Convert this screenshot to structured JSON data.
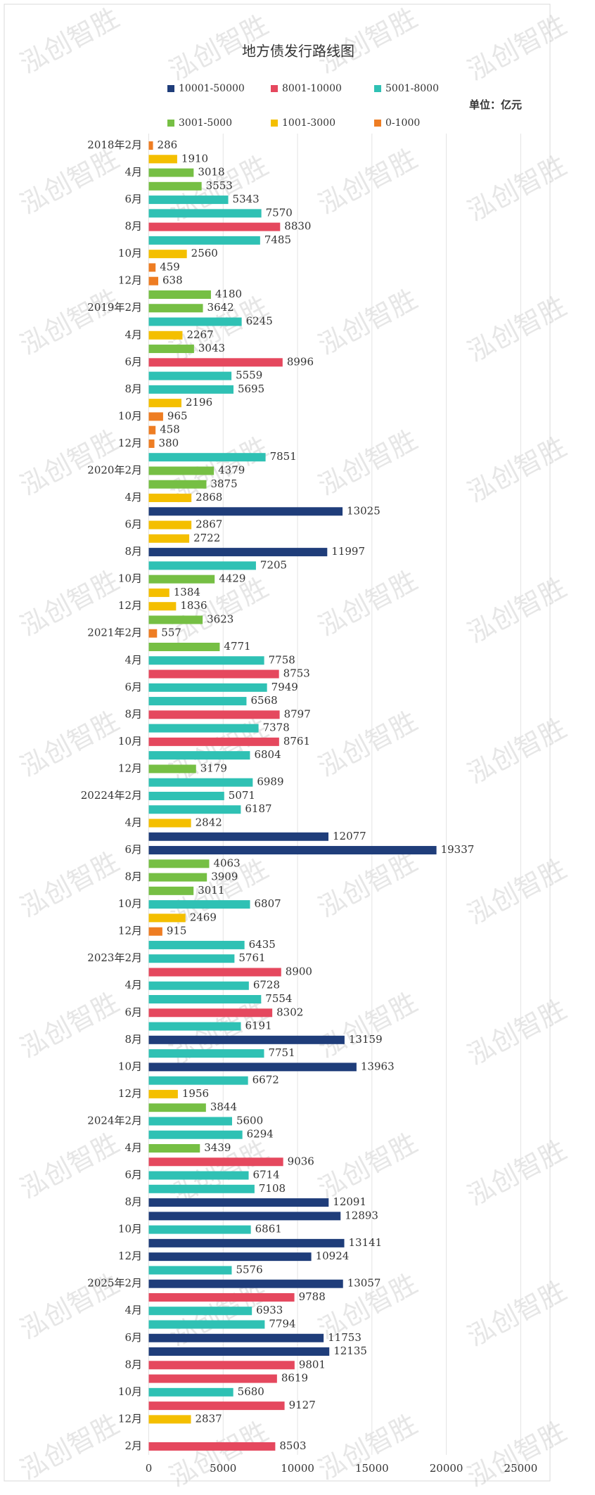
{
  "chart_data": {
    "type": "barh",
    "title": "地方债发行路线图",
    "unit_label": "单位：亿元",
    "watermark": "泓创智胜",
    "legend": [
      {
        "name": "10001-50000",
        "color": "#1f3d7a"
      },
      {
        "name": "8001-10000",
        "color": "#e5485e"
      },
      {
        "name": "5001-8000",
        "color": "#2fc1b4"
      },
      {
        "name": "3001-5000",
        "color": "#76bf44"
      },
      {
        "name": "1001-3000",
        "color": "#f4bf00"
      },
      {
        "name": "0-1000",
        "color": "#ee7d23"
      }
    ],
    "categories": [
      "2018年2月",
      null,
      "4月",
      null,
      "6月",
      null,
      "8月",
      null,
      "10月",
      null,
      "12月",
      null,
      "2019年2月",
      null,
      "4月",
      null,
      "6月",
      null,
      "8月",
      null,
      "10月",
      null,
      "12月",
      null,
      "2020年2月",
      null,
      "4月",
      null,
      "6月",
      null,
      "8月",
      null,
      "10月",
      null,
      "12月",
      null,
      "2021年2月",
      null,
      "4月",
      null,
      "6月",
      null,
      "8月",
      null,
      "10月",
      null,
      "12月",
      null,
      "20224年2月",
      null,
      "4月",
      null,
      "6月",
      null,
      "8月",
      null,
      "10月",
      null,
      "12月",
      null,
      "2023年2月",
      null,
      "4月",
      null,
      "6月",
      null,
      "8月",
      null,
      "10月",
      null,
      "12月",
      null,
      "2024年2月",
      null,
      "4月",
      null,
      "6月",
      null,
      "8月",
      null,
      "10月",
      null,
      "12月",
      null,
      "2025年2月",
      null,
      "4月",
      null,
      "6月",
      null,
      "8月",
      null,
      "10月",
      null,
      "12月",
      null,
      "2月"
    ],
    "values": [
      286,
      1910,
      3018,
      3553,
      5343,
      7570,
      8830,
      7485,
      2560,
      459,
      638,
      4180,
      3642,
      6245,
      2267,
      3043,
      8996,
      5559,
      5695,
      2196,
      965,
      458,
      380,
      7851,
      4379,
      3875,
      2868,
      13025,
      2867,
      2722,
      11997,
      7205,
      4429,
      1384,
      1836,
      3623,
      557,
      4771,
      7758,
      8753,
      7949,
      6568,
      8797,
      7378,
      8761,
      6804,
      3179,
      6989,
      5071,
      6187,
      2842,
      12077,
      19337,
      4063,
      3909,
      3011,
      6807,
      2469,
      915,
      6435,
      5761,
      8900,
      6728,
      7554,
      8302,
      6191,
      13159,
      7751,
      13963,
      6672,
      1956,
      3844,
      5600,
      6294,
      3439,
      9036,
      6714,
      7108,
      12091,
      12893,
      6861,
      13141,
      10924,
      5576,
      13057,
      9788,
      6933,
      7794,
      11753,
      12135,
      9801,
      8619,
      5680,
      9127,
      2837,
      null,
      8503
    ],
    "colors": [
      "#ee7d23",
      "#f4bf00",
      "#76bf44",
      "#76bf44",
      "#2fc1b4",
      "#2fc1b4",
      "#e5485e",
      "#2fc1b4",
      "#f4bf00",
      "#ee7d23",
      "#ee7d23",
      "#76bf44",
      "#76bf44",
      "#2fc1b4",
      "#f4bf00",
      "#76bf44",
      "#e5485e",
      "#2fc1b4",
      "#2fc1b4",
      "#f4bf00",
      "#ee7d23",
      "#ee7d23",
      "#ee7d23",
      "#2fc1b4",
      "#76bf44",
      "#76bf44",
      "#f4bf00",
      "#1f3d7a",
      "#f4bf00",
      "#f4bf00",
      "#1f3d7a",
      "#2fc1b4",
      "#76bf44",
      "#f4bf00",
      "#f4bf00",
      "#76bf44",
      "#ee7d23",
      "#76bf44",
      "#2fc1b4",
      "#e5485e",
      "#2fc1b4",
      "#2fc1b4",
      "#e5485e",
      "#2fc1b4",
      "#e5485e",
      "#2fc1b4",
      "#76bf44",
      "#2fc1b4",
      "#2fc1b4",
      "#2fc1b4",
      "#f4bf00",
      "#1f3d7a",
      "#1f3d7a",
      "#76bf44",
      "#76bf44",
      "#76bf44",
      "#2fc1b4",
      "#f4bf00",
      "#ee7d23",
      "#2fc1b4",
      "#2fc1b4",
      "#e5485e",
      "#2fc1b4",
      "#2fc1b4",
      "#e5485e",
      "#2fc1b4",
      "#1f3d7a",
      "#2fc1b4",
      "#1f3d7a",
      "#2fc1b4",
      "#f4bf00",
      "#76bf44",
      "#2fc1b4",
      "#2fc1b4",
      "#76bf44",
      "#e5485e",
      "#2fc1b4",
      "#2fc1b4",
      "#1f3d7a",
      "#1f3d7a",
      "#2fc1b4",
      "#1f3d7a",
      "#1f3d7a",
      "#2fc1b4",
      "#1f3d7a",
      "#e5485e",
      "#2fc1b4",
      "#2fc1b4",
      "#1f3d7a",
      "#1f3d7a",
      "#e5485e",
      "#e5485e",
      "#2fc1b4",
      "#e5485e",
      "#f4bf00",
      null,
      "#e5485e"
    ],
    "xlim": [
      0,
      27000
    ],
    "xticks": [
      0,
      5000,
      10000,
      15000,
      20000,
      25000
    ],
    "grid": true
  }
}
